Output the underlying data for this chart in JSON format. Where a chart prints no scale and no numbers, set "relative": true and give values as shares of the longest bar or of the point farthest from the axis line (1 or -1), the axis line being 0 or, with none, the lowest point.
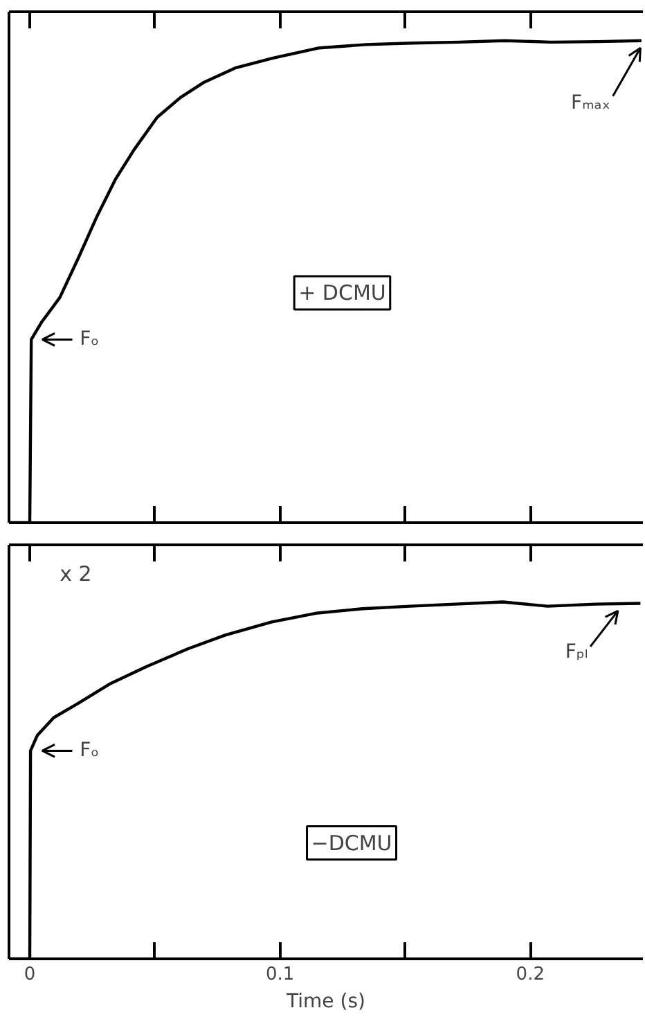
{
  "chart_data": [
    {
      "type": "line",
      "relative": true,
      "xlim": [
        -0.0083,
        0.245
      ],
      "xticks": [
        {
          "value": 0,
          "label": null
        },
        {
          "value": 0.05,
          "label": null
        },
        {
          "value": 0.1,
          "label": null
        },
        {
          "value": 0.15,
          "label": null
        },
        {
          "value": 0.2,
          "label": null
        }
      ],
      "tick_labels": false,
      "grid": false,
      "line_style": "solid",
      "annotations": [
        {
          "text": "Fₒ",
          "x": 0,
          "y": 0.38
        },
        {
          "text": "Fₘₐₓ",
          "x": 0.244,
          "y": 1.0
        },
        "+ DCMU"
      ],
      "series": [
        {
          "color": "#000000",
          "x": [
            -0.0083,
            0,
            0.0006,
            0.0046,
            0.012,
            0.0194,
            0.0269,
            0.0343,
            0.0417,
            0.0509,
            0.0602,
            0.0694,
            0.0824,
            0.0972,
            0.1157,
            0.1343,
            0.1528,
            0.1713,
            0.1898,
            0.2083,
            0.2269,
            0.2444
          ],
          "values": [
            0,
            0,
            0.38,
            0.415,
            0.467,
            0.549,
            0.636,
            0.713,
            0.774,
            0.841,
            0.882,
            0.913,
            0.944,
            0.964,
            0.985,
            0.992,
            0.995,
            0.997,
            1.0,
            0.997,
            0.998,
            1.0
          ]
        }
      ]
    },
    {
      "type": "line",
      "relative": true,
      "xlim": [
        -0.0083,
        0.245
      ],
      "xticks": [
        0,
        {
          "value": 0.05,
          "label": null
        },
        0.1,
        {
          "value": 0.15,
          "label": null
        },
        0.2
      ],
      "xlabel": "Time (s)",
      "tick_labels": "x",
      "grid": false,
      "line_style": "solid",
      "annotations": [
        {
          "text": "Fₒ",
          "x": 0,
          "y": 0.583
        },
        {
          "text": "Fₚₗ",
          "x": 0.235,
          "y": 0.99
        },
        "x 2",
        "−DCMU"
      ],
      "series": [
        {
          "color": "#000000",
          "x": [
            -0.0083,
            0,
            0.0003,
            0.003,
            0.0096,
            0.0189,
            0.0319,
            0.0467,
            0.0633,
            0.0781,
            0.0967,
            0.115,
            0.133,
            0.152,
            0.17,
            0.189,
            0.207,
            0.226,
            0.244
          ],
          "values": [
            0,
            0,
            0.583,
            0.626,
            0.676,
            0.714,
            0.77,
            0.819,
            0.869,
            0.907,
            0.944,
            0.969,
            0.981,
            0.988,
            0.994,
            1.0,
            0.988,
            0.994,
            0.996
          ]
        }
      ]
    }
  ]
}
